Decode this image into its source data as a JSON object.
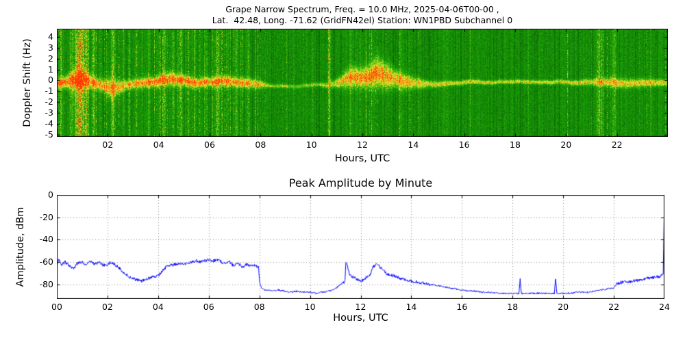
{
  "chart_data": [
    {
      "type": "heatmap",
      "title_line1": "Grape Narrow Spectrum, Freq. = 10.0 MHz, 2025-04-06T00-00 ,",
      "title_line2": "Lat.  42.48, Long. -71.62 (GridFN42el) Station: WN1PBD Subchannel 0",
      "xlabel": "Hours, UTC",
      "ylabel": "Doppler Shift (Hz)",
      "xlim": [
        0,
        24
      ],
      "ylim": [
        -5.2,
        4.75
      ],
      "xticks": {
        "values": [
          2,
          4,
          6,
          8,
          10,
          12,
          14,
          16,
          18,
          20,
          22
        ],
        "labels": [
          "02",
          "04",
          "06",
          "08",
          "10",
          "12",
          "14",
          "16",
          "18",
          "20",
          "22"
        ]
      },
      "yticks": {
        "values": [
          4,
          3,
          2,
          1,
          0,
          -1,
          -2,
          -3,
          -4,
          -5
        ],
        "labels": [
          "4",
          "3",
          "2",
          "1",
          "0",
          "-1",
          "-2",
          "-3",
          "-4",
          "-5"
        ]
      },
      "colormap_stops": [
        {
          "v": 0.0,
          "c": "#005000"
        },
        {
          "v": 0.45,
          "c": "#23af0a"
        },
        {
          "v": 0.7,
          "c": "#ebeb2d"
        },
        {
          "v": 1.0,
          "c": "#ff3700"
        }
      ],
      "frame_color": "#000000",
      "trace": [
        [
          0,
          -0.3,
          0.3,
          0.95
        ],
        [
          0.3,
          -0.1,
          0.35,
          1
        ],
        [
          0.6,
          0.2,
          0.5,
          1
        ],
        [
          0.9,
          0.3,
          0.8,
          1
        ],
        [
          1.2,
          0.1,
          0.5,
          0.95
        ],
        [
          1.5,
          -0.2,
          0.35,
          0.9
        ],
        [
          1.8,
          -0.3,
          0.4,
          0.9
        ],
        [
          2.1,
          -0.6,
          0.6,
          0.85
        ],
        [
          2.4,
          -0.4,
          0.45,
          0.8
        ],
        [
          2.7,
          -0.2,
          0.3,
          0.85
        ],
        [
          3,
          -0.1,
          0.3,
          0.9
        ],
        [
          3.5,
          0,
          0.3,
          0.95
        ],
        [
          4,
          0.1,
          0.35,
          1
        ],
        [
          4.5,
          0.3,
          0.4,
          1
        ],
        [
          5,
          0.2,
          0.35,
          1
        ],
        [
          5.5,
          0,
          0.3,
          0.95
        ],
        [
          6,
          0.1,
          0.3,
          0.95
        ],
        [
          6.5,
          0.2,
          0.35,
          0.95
        ],
        [
          7,
          0.1,
          0.3,
          0.9
        ],
        [
          7.5,
          0,
          0.3,
          0.9
        ],
        [
          7.9,
          -0.1,
          0.3,
          0.85
        ],
        [
          8.2,
          -0.25,
          0.15,
          0.55
        ],
        [
          8.6,
          -0.3,
          0.12,
          0.5
        ],
        [
          9,
          -0.3,
          0.12,
          0.45
        ],
        [
          9.5,
          -0.35,
          0.12,
          0.45
        ],
        [
          10,
          -0.3,
          0.13,
          0.5
        ],
        [
          10.5,
          -0.3,
          0.15,
          0.55
        ],
        [
          11,
          0,
          0.3,
          0.7
        ],
        [
          11.3,
          0.3,
          0.5,
          0.85
        ],
        [
          11.6,
          0.5,
          0.6,
          0.9
        ],
        [
          12,
          0.4,
          0.6,
          0.9
        ],
        [
          12.3,
          0.6,
          0.7,
          1
        ],
        [
          12.6,
          0.9,
          0.9,
          1
        ],
        [
          12.9,
          0.6,
          0.8,
          0.95
        ],
        [
          13.2,
          0.4,
          0.6,
          0.9
        ],
        [
          13.6,
          0.2,
          0.5,
          0.85
        ],
        [
          14,
          0,
          0.35,
          0.8
        ],
        [
          14.5,
          -0.2,
          0.25,
          0.75
        ],
        [
          15,
          -0.3,
          0.18,
          0.7
        ],
        [
          16,
          -0.3,
          0.15,
          0.7
        ],
        [
          17,
          -0.35,
          0.13,
          0.7
        ],
        [
          18,
          -0.3,
          0.13,
          0.7
        ],
        [
          19,
          -0.35,
          0.13,
          0.7
        ],
        [
          20,
          -0.3,
          0.14,
          0.7
        ],
        [
          21,
          -0.35,
          0.2,
          0.7
        ],
        [
          21.5,
          -0.3,
          0.3,
          0.75
        ],
        [
          22,
          -0.3,
          0.3,
          0.75
        ],
        [
          23,
          -0.25,
          0.25,
          0.75
        ],
        [
          24,
          -0.3,
          0.2,
          0.75
        ]
      ],
      "bursts": [
        [
          0.15,
          0.05,
          0.45
        ],
        [
          0.55,
          0.06,
          0.4
        ],
        [
          0.8,
          0.08,
          0.65
        ],
        [
          0.95,
          0.1,
          0.85
        ],
        [
          1.15,
          0.06,
          0.6
        ],
        [
          1.45,
          0.04,
          0.4
        ],
        [
          2.2,
          0.06,
          0.55
        ],
        [
          2.6,
          0.03,
          0.35
        ],
        [
          3.1,
          0.04,
          0.4
        ],
        [
          3.6,
          0.03,
          0.35
        ],
        [
          4.2,
          0.05,
          0.5
        ],
        [
          4.55,
          0.04,
          0.45
        ],
        [
          4.85,
          0.05,
          0.5
        ],
        [
          5.4,
          0.04,
          0.4
        ],
        [
          5.8,
          0.03,
          0.35
        ],
        [
          6.3,
          0.05,
          0.45
        ],
        [
          6.7,
          0.03,
          0.35
        ],
        [
          7.05,
          0.04,
          0.4
        ],
        [
          7.5,
          0.03,
          0.35
        ],
        [
          9.3,
          0.02,
          0.25
        ],
        [
          10.68,
          0.04,
          0.8
        ],
        [
          11.5,
          0.03,
          0.3
        ],
        [
          13.5,
          0.03,
          0.3
        ],
        [
          15.2,
          0.02,
          0.25
        ],
        [
          18.5,
          0.02,
          0.22
        ],
        [
          21.3,
          0.08,
          0.45
        ],
        [
          21.9,
          0.05,
          0.4
        ],
        [
          23.3,
          0.03,
          0.3
        ]
      ],
      "noise_regions": [
        [
          0,
          8,
          0.5
        ],
        [
          8,
          11,
          0.12
        ],
        [
          11,
          14,
          0.25
        ],
        [
          14,
          21,
          0.08
        ],
        [
          21,
          24,
          0.28
        ]
      ]
    },
    {
      "type": "line",
      "title": "Peak Amplitude by Minute",
      "xlabel": "Hours, UTC",
      "ylabel": "Amplitude, dBm",
      "xlim": [
        0,
        24
      ],
      "ylim": [
        -93,
        0
      ],
      "xticks": {
        "values": [
          0,
          2,
          4,
          6,
          8,
          10,
          12,
          14,
          16,
          18,
          20,
          22,
          24
        ],
        "labels": [
          "00",
          "02",
          "04",
          "06",
          "08",
          "10",
          "12",
          "14",
          "16",
          "18",
          "20",
          "22",
          "24"
        ]
      },
      "yticks": {
        "values": [
          0,
          -20,
          -40,
          -60,
          -80
        ],
        "labels": [
          "0",
          "-20",
          "-40",
          "-60",
          "-80"
        ]
      },
      "line_color": "#0000ff",
      "grid_color": "#8a8a8a",
      "frame_color": "#000000",
      "grid": true,
      "series": [
        {
          "name": "Peak Amplitude (dBm)",
          "points": [
            [
              0,
              -62
            ],
            [
              0.08,
              -57
            ],
            [
              0.17,
              -63
            ],
            [
              0.33,
              -60
            ],
            [
              0.5,
              -63
            ],
            [
              0.67,
              -66
            ],
            [
              0.83,
              -61
            ],
            [
              1,
              -60
            ],
            [
              1.17,
              -63
            ],
            [
              1.33,
              -59
            ],
            [
              1.5,
              -62
            ],
            [
              1.67,
              -60
            ],
            [
              1.83,
              -63
            ],
            [
              2,
              -62
            ],
            [
              2.17,
              -60
            ],
            [
              2.33,
              -63
            ],
            [
              2.5,
              -66
            ],
            [
              2.67,
              -70
            ],
            [
              2.83,
              -73
            ],
            [
              3,
              -75
            ],
            [
              3.17,
              -76
            ],
            [
              3.33,
              -77
            ],
            [
              3.5,
              -76
            ],
            [
              3.67,
              -74
            ],
            [
              3.83,
              -73
            ],
            [
              4,
              -72
            ],
            [
              4.17,
              -68
            ],
            [
              4.33,
              -64
            ],
            [
              4.5,
              -63
            ],
            [
              4.67,
              -62
            ],
            [
              4.83,
              -61
            ],
            [
              5,
              -62
            ],
            [
              5.17,
              -61
            ],
            [
              5.33,
              -60
            ],
            [
              5.5,
              -59
            ],
            [
              5.67,
              -60
            ],
            [
              5.83,
              -59
            ],
            [
              6,
              -58
            ],
            [
              6.17,
              -59
            ],
            [
              6.33,
              -58
            ],
            [
              6.5,
              -60
            ],
            [
              6.67,
              -62
            ],
            [
              6.83,
              -60
            ],
            [
              7,
              -64
            ],
            [
              7.17,
              -61
            ],
            [
              7.33,
              -65
            ],
            [
              7.5,
              -62
            ],
            [
              7.67,
              -64
            ],
            [
              7.83,
              -63
            ],
            [
              7.97,
              -65
            ],
            [
              8.02,
              -80
            ],
            [
              8.1,
              -84
            ],
            [
              8.25,
              -85
            ],
            [
              8.5,
              -86
            ],
            [
              8.75,
              -85
            ],
            [
              9,
              -86
            ],
            [
              9.25,
              -87
            ],
            [
              9.5,
              -86
            ],
            [
              9.75,
              -87
            ],
            [
              10,
              -87
            ],
            [
              10.25,
              -88
            ],
            [
              10.5,
              -87
            ],
            [
              10.75,
              -86
            ],
            [
              11,
              -84
            ],
            [
              11.1,
              -82
            ],
            [
              11.2,
              -80
            ],
            [
              11.3,
              -79
            ],
            [
              11.38,
              -77
            ],
            [
              11.42,
              -58
            ],
            [
              11.47,
              -63
            ],
            [
              11.55,
              -70
            ],
            [
              11.65,
              -73
            ],
            [
              11.75,
              -74
            ],
            [
              11.9,
              -76
            ],
            [
              12,
              -77
            ],
            [
              12.1,
              -76
            ],
            [
              12.2,
              -74
            ],
            [
              12.3,
              -73
            ],
            [
              12.4,
              -70
            ],
            [
              12.5,
              -64
            ],
            [
              12.6,
              -62
            ],
            [
              12.7,
              -63
            ],
            [
              12.8,
              -65
            ],
            [
              12.9,
              -68
            ],
            [
              13,
              -70
            ],
            [
              13.1,
              -71
            ],
            [
              13.25,
              -72
            ],
            [
              13.4,
              -73
            ],
            [
              13.5,
              -74
            ],
            [
              13.75,
              -76
            ],
            [
              14,
              -77
            ],
            [
              14.25,
              -78
            ],
            [
              14.5,
              -79
            ],
            [
              14.75,
              -80
            ],
            [
              15,
              -81
            ],
            [
              15.25,
              -82
            ],
            [
              15.5,
              -83
            ],
            [
              15.75,
              -84
            ],
            [
              16,
              -85
            ],
            [
              16.25,
              -86
            ],
            [
              16.5,
              -86
            ],
            [
              16.75,
              -87
            ],
            [
              17,
              -87
            ],
            [
              17.5,
              -88
            ],
            [
              18,
              -88
            ],
            [
              18.25,
              -88
            ],
            [
              18.3,
              -75
            ],
            [
              18.35,
              -88
            ],
            [
              18.75,
              -88
            ],
            [
              19,
              -88
            ],
            [
              19.25,
              -88
            ],
            [
              19.65,
              -88
            ],
            [
              19.7,
              -76
            ],
            [
              19.75,
              -88
            ],
            [
              20,
              -88
            ],
            [
              20.25,
              -88
            ],
            [
              20.5,
              -87
            ],
            [
              20.75,
              -87
            ],
            [
              21,
              -87
            ],
            [
              21.25,
              -86
            ],
            [
              21.5,
              -85
            ],
            [
              21.75,
              -84
            ],
            [
              22,
              -83
            ],
            [
              22.1,
              -80
            ],
            [
              22.2,
              -79
            ],
            [
              22.3,
              -78
            ],
            [
              22.5,
              -78
            ],
            [
              22.75,
              -77
            ],
            [
              23,
              -76
            ],
            [
              23.25,
              -75
            ],
            [
              23.5,
              -74
            ],
            [
              23.75,
              -73
            ],
            [
              23.95,
              -72
            ],
            [
              24,
              0
            ]
          ]
        }
      ]
    }
  ]
}
